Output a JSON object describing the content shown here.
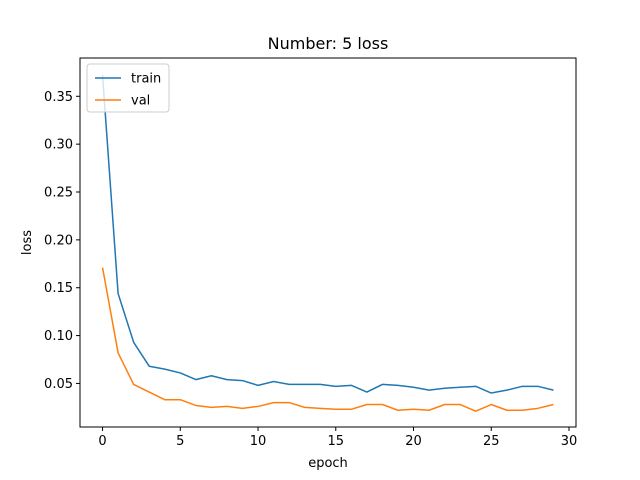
{
  "chart_data": {
    "type": "line",
    "title": "Number: 5 loss",
    "xlabel": "epoch",
    "ylabel": "loss",
    "xlim": [
      -1.45,
      30.45
    ],
    "ylim": [
      0.0045,
      0.39
    ],
    "xticks": [
      0,
      5,
      10,
      15,
      20,
      25,
      30
    ],
    "yticks": [
      0.05,
      0.1,
      0.15,
      0.2,
      0.25,
      0.3,
      0.35
    ],
    "grid": false,
    "legend": "upper left",
    "x": [
      0,
      1,
      2,
      3,
      4,
      5,
      6,
      7,
      8,
      9,
      10,
      11,
      12,
      13,
      14,
      15,
      16,
      17,
      18,
      19,
      20,
      21,
      22,
      23,
      24,
      25,
      26,
      27,
      28,
      29
    ],
    "series": [
      {
        "name": "train",
        "color": "#1f77b4",
        "values": [
          0.372,
          0.144,
          0.093,
          0.068,
          0.065,
          0.061,
          0.054,
          0.058,
          0.054,
          0.053,
          0.048,
          0.052,
          0.049,
          0.049,
          0.049,
          0.047,
          0.048,
          0.041,
          0.049,
          0.048,
          0.046,
          0.043,
          0.045,
          0.046,
          0.047,
          0.04,
          0.043,
          0.047,
          0.047,
          0.043
        ]
      },
      {
        "name": "val",
        "color": "#ff7f0e",
        "values": [
          0.171,
          0.082,
          0.049,
          0.041,
          0.033,
          0.033,
          0.027,
          0.025,
          0.026,
          0.024,
          0.026,
          0.03,
          0.03,
          0.025,
          0.024,
          0.023,
          0.023,
          0.028,
          0.028,
          0.022,
          0.023,
          0.022,
          0.028,
          0.028,
          0.021,
          0.028,
          0.022,
          0.022,
          0.024,
          0.028
        ]
      }
    ]
  }
}
